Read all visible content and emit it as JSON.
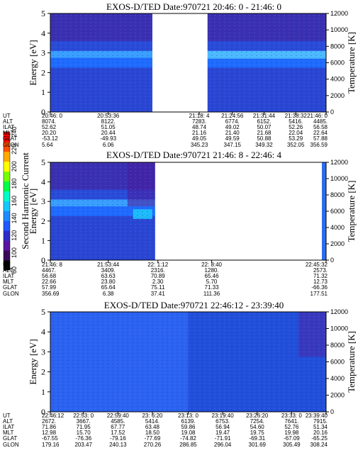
{
  "chart_data": {
    "type": "heatmap",
    "colorbar": {
      "label": "Second Harmonic Current",
      "ticks": [
        "80",
        "100",
        "120",
        "140",
        "160",
        "180",
        "200",
        "220",
        "240"
      ],
      "range": [
        80,
        240
      ],
      "colors": [
        "#000000",
        "#3a0a5a",
        "#5a14a0",
        "#2d2dc8",
        "#1e5aff",
        "#1e8cff",
        "#14c8ff",
        "#00ffc8",
        "#00ff46",
        "#78ff00",
        "#ffff00",
        "#ffaa00",
        "#ff5000",
        "#ff0000"
      ]
    },
    "panels": [
      {
        "title": "EXOS-D/TED   Date:970721  20:46: 0 - 21:46: 0",
        "ylabel": "Energy [eV]",
        "y2label": "Temperature [K]",
        "ylim": [
          0,
          5
        ],
        "y_ticks": [
          "0",
          "1",
          "2",
          "3",
          "4",
          "5"
        ],
        "y2lim": [
          0,
          12000
        ],
        "y2_ticks": [
          "0",
          "2000",
          "4000",
          "6000",
          "8000",
          "10000",
          "12000"
        ],
        "row_labels": [
          "UT",
          "ALT",
          "ILAT",
          "MLT",
          "GLAT",
          "GLON"
        ],
        "data_gaps": [
          [
            0.37,
            0.57
          ]
        ],
        "columns": [
          {
            "UT": "20:46: 0",
            "ALT": "8074.",
            "ILAT": "52.62",
            "MLT": "20.20",
            "GLAT": "-53.12",
            "GLON": "5.64"
          },
          {
            "UT": "20:53:36",
            "ALT": "8122.",
            "ILAT": "51.05",
            "MLT": "20.44",
            "GLAT": "-49.93",
            "GLON": "6.06"
          },
          {
            "UT": "21:18: 4",
            "ALT": "7283.",
            "ILAT": "48.74",
            "MLT": "21.16",
            "GLAT": "49.05",
            "GLON": "345.23"
          },
          {
            "UT": "21:24:56",
            "ALT": "6774.",
            "ILAT": "49.02",
            "MLT": "21.40",
            "GLAT": "49.59",
            "GLON": "347.15"
          },
          {
            "UT": "21:31:44",
            "ALT": "6152.",
            "ILAT": "50.07",
            "MLT": "21.68",
            "GLAT": "50.88",
            "GLON": "349.32"
          },
          {
            "UT": "21:38:32",
            "ALT": "5416.",
            "ILAT": "52.26",
            "MLT": "22.04",
            "GLAT": "53.29",
            "GLON": "352.05"
          },
          {
            "UT": "21:46: 0",
            "ALT": "4485.",
            "ILAT": "56.58",
            "MLT": "22.64",
            "GLAT": "57.88",
            "GLON": "356.59"
          }
        ]
      },
      {
        "title": "EXOS-D/TED   Date:970721  21:46: 8 - 22:46: 4",
        "ylabel": "Energy [eV]",
        "y2label": "Temperature [K]",
        "ylim": [
          0,
          5
        ],
        "y_ticks": [
          "0",
          "1",
          "2",
          "3",
          "4",
          "5"
        ],
        "y2lim": [
          0,
          12000
        ],
        "y2_ticks": [
          "0",
          "2000",
          "4000",
          "6000",
          "8000",
          "10000",
          "12000"
        ],
        "row_labels": [
          "UT",
          "ALT",
          "ILAT",
          "MLT",
          "GLAT",
          "GLON"
        ],
        "data_gaps": [
          [
            0.38,
            0.985
          ]
        ],
        "columns": [
          {
            "UT": "21:46: 8",
            "ALT": "4467.",
            "ILAT": "56.68",
            "MLT": "22.66",
            "GLAT": "57.99",
            "GLON": "356.69"
          },
          {
            "UT": "21:53:44",
            "ALT": "3409.",
            "ILAT": "63.63",
            "MLT": "23.80",
            "GLAT": "65.64",
            "GLON": "6.38"
          },
          {
            "UT": "22: 1:12",
            "ALT": "2316.",
            "ILAT": "70.89",
            "MLT": "2.30",
            "GLAT": "75.11",
            "GLON": "37.41"
          },
          {
            "UT": "22: 8:40",
            "ALT": "1280.",
            "ILAT": "65.46",
            "MLT": "5.70",
            "GLAT": "71.33",
            "GLON": "111.36"
          },
          {
            "UT": "22:45:32",
            "ALT": "2573.",
            "ILAT": "71.32",
            "MLT": "12.73",
            "GLAT": "-66.36",
            "GLON": "177.51"
          }
        ]
      },
      {
        "title": "EXOS-D/TED   Date:970721  22:46:12 - 23:39:40",
        "ylabel": "Energy [eV]",
        "y2label": "Temperature [K]",
        "ylim": [
          0,
          5
        ],
        "y_ticks": [
          "0",
          "1",
          "2",
          "3",
          "4",
          "5"
        ],
        "y2lim": [
          0,
          12000
        ],
        "y2_ticks": [
          "0",
          "2000",
          "4000",
          "6000",
          "8000",
          "10000",
          "12000"
        ],
        "row_labels": [
          "UT",
          "ALT",
          "ILAT",
          "MLT",
          "GLAT",
          "GLON"
        ],
        "data_gaps": [],
        "columns": [
          {
            "UT": "22:46:12",
            "ALT": "2672.",
            "ILAT": "71.86",
            "MLT": "12.98",
            "GLAT": "-67.55",
            "GLON": "179.16"
          },
          {
            "UT": "22:53: 0",
            "ALT": "3667.",
            "ILAT": "71.95",
            "MLT": "15.70",
            "GLAT": "-76.36",
            "GLON": "203.47"
          },
          {
            "UT": "22:59:40",
            "ALT": "4585.",
            "ILAT": "67.77",
            "MLT": "17.52",
            "GLAT": "-79.16",
            "GLON": "240.13"
          },
          {
            "UT": "23: 6:20",
            "ALT": "5414.",
            "ILAT": "63.48",
            "MLT": "18.50",
            "GLAT": "-77.69",
            "GLON": "270.26"
          },
          {
            "UT": "23:13: 0",
            "ALT": "6139.",
            "ILAT": "59.86",
            "MLT": "19.08",
            "GLAT": "-74.82",
            "GLON": "286.85"
          },
          {
            "UT": "23:19:40",
            "ALT": "6753.",
            "ILAT": "56.94",
            "MLT": "19.47",
            "GLAT": "-71.91",
            "GLON": "296.04"
          },
          {
            "UT": "23:26:20",
            "ALT": "7254.",
            "ILAT": "54.60",
            "MLT": "19.75",
            "GLAT": "-69.31",
            "GLON": "301.69"
          },
          {
            "UT": "23:33: 0",
            "ALT": "7641.",
            "ILAT": "52.76",
            "MLT": "19.98",
            "GLAT": "-67.09",
            "GLON": "305.49"
          },
          {
            "UT": "23:39:40",
            "ALT": "7915.",
            "ILAT": "51.34",
            "MLT": "20.16",
            "GLAT": "-65.25",
            "GLON": "308.24"
          }
        ]
      }
    ]
  }
}
